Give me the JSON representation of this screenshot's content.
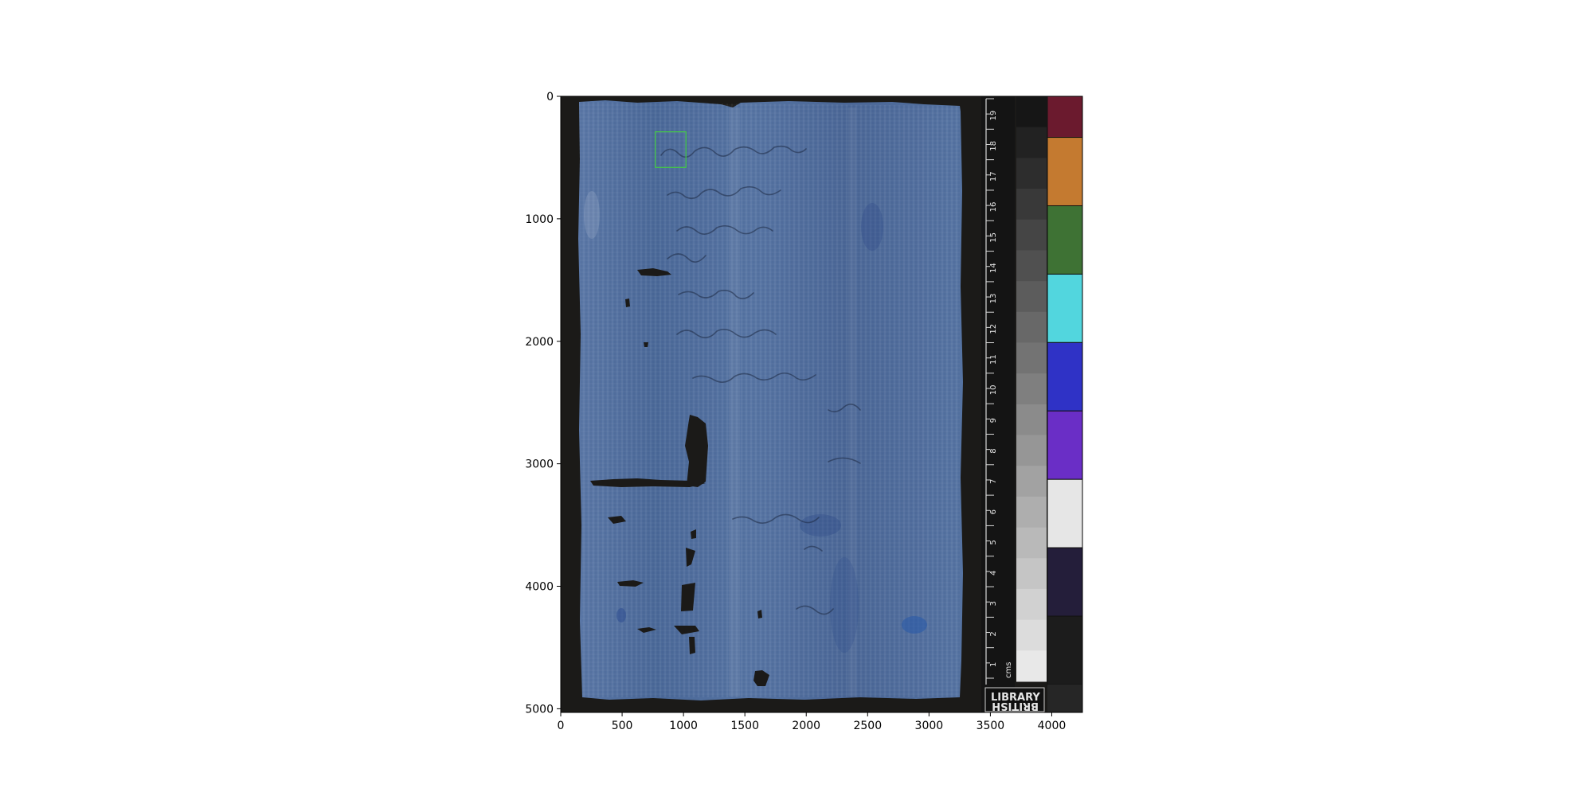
{
  "image": {
    "subject": "papyrus-fragment",
    "x_ticks": [
      "0",
      "500",
      "1000",
      "1500",
      "2000",
      "2500",
      "3000",
      "3500",
      "4000"
    ],
    "y_ticks": [
      "0",
      "1000",
      "2000",
      "3000",
      "4000",
      "5000"
    ],
    "x_range": [
      0,
      4250
    ],
    "y_range": [
      5030,
      0
    ],
    "highlight_box": {
      "x0": 770,
      "x1": 1020,
      "y0": 290,
      "y1": 580,
      "color": "#44cc44"
    }
  },
  "ruler": {
    "numbers": [
      "19",
      "18",
      "17",
      "16",
      "15",
      "14",
      "13",
      "12",
      "11",
      "10",
      "9",
      "8",
      "7",
      "6",
      "5",
      "4",
      "3",
      "2",
      "1"
    ],
    "unit": "cms"
  },
  "color_chart": {
    "swatches": [
      "#6b1a2e",
      "#c47a30",
      "#3e7234",
      "#52d6de",
      "#2f32c6",
      "#6a2ec6",
      "#e6e6e6",
      "#241e3a",
      "#1c1c1c"
    ]
  },
  "logo": {
    "line1": "LIBRARY",
    "line2": "BRITISH"
  },
  "colors": {
    "papyrus": "#4d6b9c",
    "background": "#1b1a18",
    "ruler_panel": "#141414"
  }
}
